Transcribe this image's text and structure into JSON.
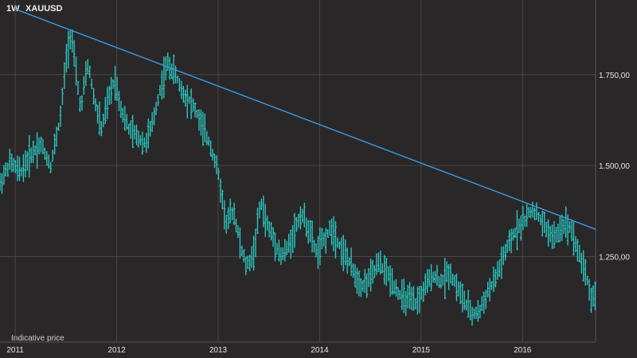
{
  "header": {
    "interval": "1W",
    "symbol": "XAUUSD"
  },
  "note": "Indicative price",
  "chart_data": {
    "type": "line",
    "style": "ohlc-bars",
    "title": "",
    "xlabel": "",
    "ylabel": "",
    "x_range": [
      2010.85,
      2016.72
    ],
    "ylim": [
      1015,
      1955
    ],
    "grid": true,
    "y_ticks": [
      {
        "value": 1250,
        "label": "1.250,00"
      },
      {
        "value": 1500,
        "label": "1.500,00"
      },
      {
        "value": 1750,
        "label": "1.750,00"
      }
    ],
    "x_ticks": [
      {
        "value": 2011,
        "label": "2011"
      },
      {
        "value": 2012,
        "label": "2012"
      },
      {
        "value": 2013,
        "label": "2013"
      },
      {
        "value": 2014,
        "label": "2014"
      },
      {
        "value": 2015,
        "label": "2015"
      },
      {
        "value": 2016,
        "label": "2016"
      }
    ],
    "series": [
      {
        "x": [
          2010.85,
          2010.95,
          2011.05,
          2011.15,
          2011.25,
          2011.35,
          2011.45,
          2011.5,
          2011.55,
          2011.6,
          2011.65,
          2011.68,
          2011.72,
          2011.78,
          2011.85,
          2011.92,
          2011.98,
          2012.05,
          2012.12,
          2012.2,
          2012.28,
          2012.35,
          2012.42,
          2012.5,
          2012.58,
          2012.65,
          2012.72,
          2012.78,
          2012.85,
          2012.92,
          2013.0,
          2013.08,
          2013.15,
          2013.22,
          2013.28,
          2013.35,
          2013.42,
          2013.48,
          2013.55,
          2013.62,
          2013.68,
          2013.75,
          2013.82,
          2013.9,
          2013.97,
          2014.05,
          2014.12,
          2014.2,
          2014.28,
          2014.35,
          2014.42,
          2014.5,
          2014.58,
          2014.65,
          2014.72,
          2014.8,
          2014.88,
          2014.95,
          2015.05,
          2015.12,
          2015.2,
          2015.28,
          2015.35,
          2015.42,
          2015.5,
          2015.58,
          2015.65,
          2015.72,
          2015.8,
          2015.88,
          2015.95,
          2016.02,
          2016.1,
          2016.18,
          2016.25,
          2016.32,
          2016.4,
          2016.48,
          2016.55,
          2016.62,
          2016.68,
          2016.72
        ],
        "values": [
          1450,
          1510,
          1480,
          1530,
          1560,
          1500,
          1640,
          1790,
          1870,
          1750,
          1650,
          1720,
          1780,
          1680,
          1600,
          1680,
          1740,
          1650,
          1600,
          1580,
          1560,
          1610,
          1700,
          1780,
          1750,
          1700,
          1680,
          1650,
          1600,
          1560,
          1480,
          1340,
          1380,
          1280,
          1220,
          1260,
          1400,
          1340,
          1300,
          1250,
          1270,
          1320,
          1370,
          1320,
          1260,
          1300,
          1330,
          1280,
          1240,
          1200,
          1170,
          1190,
          1230,
          1210,
          1180,
          1140,
          1130,
          1120,
          1170,
          1200,
          1180,
          1210,
          1170,
          1130,
          1090,
          1100,
          1150,
          1180,
          1240,
          1290,
          1330,
          1350,
          1380,
          1350,
          1320,
          1300,
          1340,
          1330,
          1260,
          1210,
          1130,
          1150
        ],
        "color": "#2ad0c8"
      },
      {
        "name": "trendline",
        "x": [
          2011.0,
          2016.72
        ],
        "values": [
          1930,
          1325
        ],
        "color": "#3b9be0"
      }
    ]
  }
}
